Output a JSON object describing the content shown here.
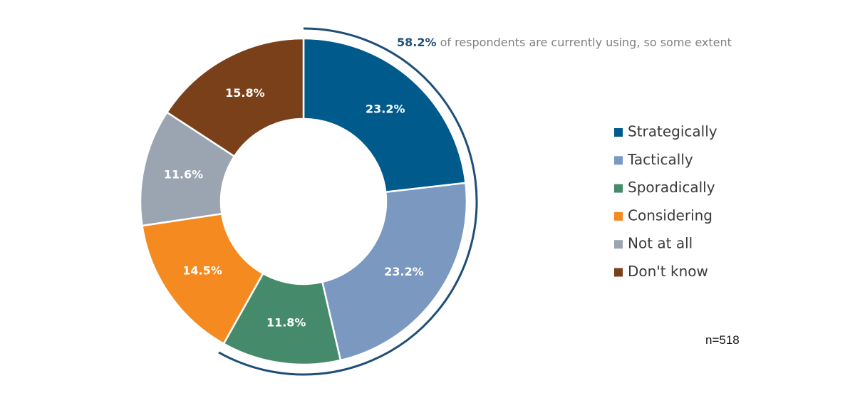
{
  "chart_data": {
    "type": "pie",
    "variant": "donut",
    "categories": [
      "Strategically",
      "Tactically",
      "Sporadically",
      "Considering",
      "Not at all",
      "Don't know"
    ],
    "values": [
      23.2,
      23.2,
      11.8,
      14.5,
      11.6,
      15.8
    ],
    "value_labels": [
      "23.2%",
      "23.2%",
      "11.8%",
      "14.5%",
      "11.6%",
      "15.8%"
    ],
    "colors": [
      "#005a8c",
      "#7b98c0",
      "#468a6c",
      "#f58a21",
      "#9aa5b1",
      "#7a4019"
    ],
    "legend_position": "right",
    "annotation": {
      "bold_text": "58.2%",
      "text": " of respondents are currently using, so some extent",
      "bracket_color": "#1f4e79",
      "spans_categories": [
        "Strategically",
        "Tactically",
        "Sporadically"
      ]
    },
    "sample_size": "n=518"
  }
}
